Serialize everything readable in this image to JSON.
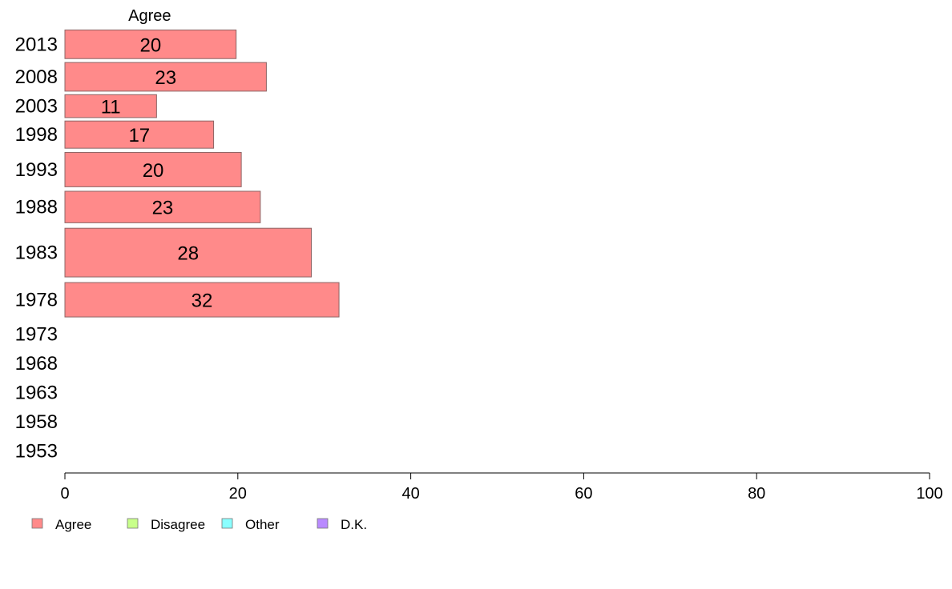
{
  "chart_data": {
    "type": "bar",
    "orientation": "horizontal",
    "stacked": true,
    "categories": [
      "2013",
      "2008",
      "2003",
      "1998",
      "1993",
      "1988",
      "1983",
      "1978",
      "1973",
      "1968",
      "1963",
      "1958",
      "1953"
    ],
    "series": [
      {
        "name": "Agree",
        "color": "#ff8a8a",
        "values": [
          20,
          23,
          11,
          17,
          20,
          23,
          28,
          32,
          null,
          null,
          null,
          null,
          null
        ]
      },
      {
        "name": "Disagree",
        "color": "#c8ff8a",
        "values": [
          null,
          null,
          null,
          null,
          null,
          null,
          null,
          null,
          null,
          null,
          null,
          null,
          null
        ]
      },
      {
        "name": "Other",
        "color": "#8affff",
        "values": [
          null,
          null,
          null,
          null,
          null,
          null,
          null,
          null,
          null,
          null,
          null,
          null,
          null
        ]
      },
      {
        "name": "D.K.",
        "color": "#b98aff",
        "values": [
          null,
          null,
          null,
          null,
          null,
          null,
          null,
          null,
          null,
          null,
          null,
          null,
          null
        ]
      }
    ],
    "data_labels": [
      "20",
      "23",
      "11",
      "17",
      "20",
      "23",
      "28",
      "32"
    ],
    "exact_values": [
      19.8,
      23.3,
      10.6,
      17.2,
      20.4,
      22.6,
      28.5,
      31.7
    ],
    "series_title": "Agree",
    "xlim": [
      0,
      100
    ],
    "xticks": [
      0,
      20,
      40,
      60,
      80,
      100
    ],
    "xtick_labels": [
      "0",
      "20",
      "40",
      "60",
      "80",
      "100"
    ],
    "relative_band_heights": [
      1.0,
      1.0,
      0.8,
      0.95,
      1.2,
      1.1,
      1.7,
      1.2,
      0.9,
      0.9,
      0.9,
      0.9,
      0.9
    ],
    "grid": false,
    "legend_position": "bottom-left"
  }
}
